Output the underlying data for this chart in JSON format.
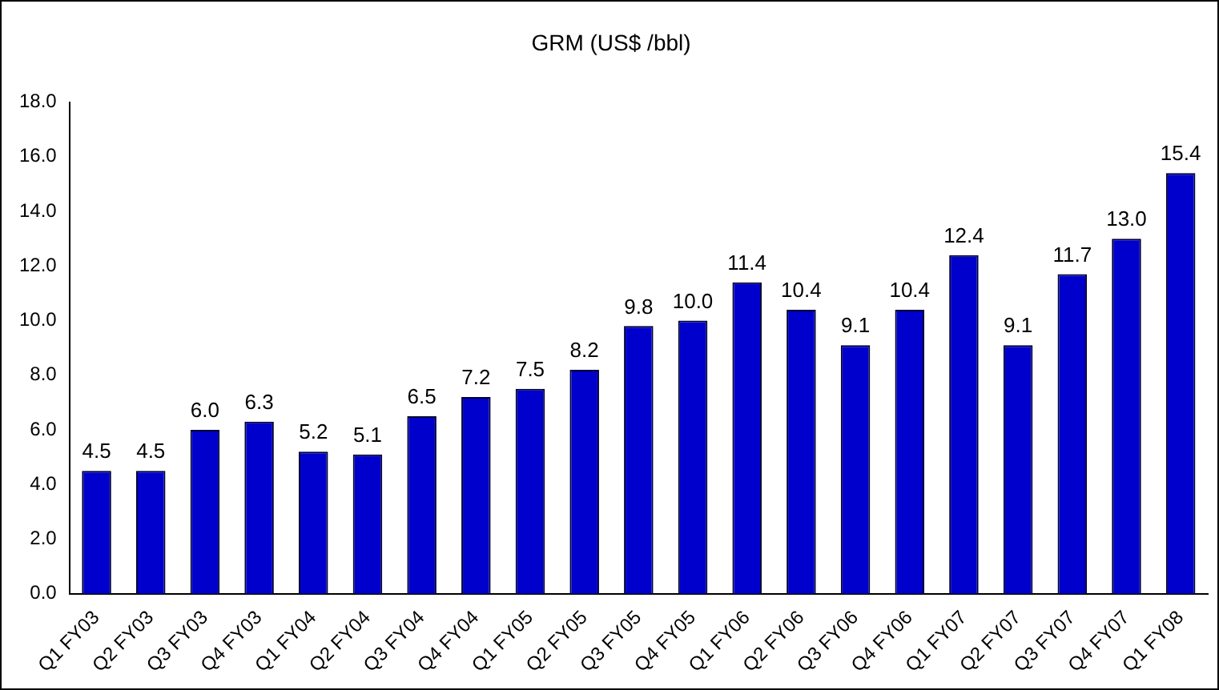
{
  "chart_data": {
    "type": "bar",
    "title": "GRM (US$ /bbl)",
    "categories": [
      "Q1 FY03",
      "Q2 FY03",
      "Q3 FY03",
      "Q4 FY03",
      "Q1 FY04",
      "Q2 FY04",
      "Q3 FY04",
      "Q4 FY04",
      "Q1 FY05",
      "Q2 FY05",
      "Q3 FY05",
      "Q4 FY05",
      "Q1 FY06",
      "Q2 FY06",
      "Q3 FY06",
      "Q4 FY06",
      "Q1 FY07",
      "Q2 FY07",
      "Q3 FY07",
      "Q4 FY07",
      "Q1 FY08"
    ],
    "values": [
      4.5,
      4.5,
      6.0,
      6.3,
      5.2,
      5.1,
      6.5,
      7.2,
      7.5,
      8.2,
      9.8,
      10.0,
      11.4,
      10.4,
      9.1,
      10.4,
      12.4,
      9.1,
      11.7,
      13.0,
      15.4
    ],
    "value_labels": [
      "4.5",
      "4.5",
      "6.0",
      "6.3",
      "5.2",
      "5.1",
      "6.5",
      "7.2",
      "7.5",
      "8.2",
      "9.8",
      "10.0",
      "11.4",
      "10.4",
      "9.1",
      "10.4",
      "12.4",
      "9.1",
      "11.7",
      "13.0",
      "15.4"
    ],
    "color": "#0000cc",
    "ylim": [
      0,
      18
    ],
    "yticks": [
      {
        "value": 0,
        "label": "0.0"
      },
      {
        "value": 2,
        "label": "2.0"
      },
      {
        "value": 4,
        "label": "4.0"
      },
      {
        "value": 6,
        "label": "6.0"
      },
      {
        "value": 8,
        "label": "8.0"
      },
      {
        "value": 10,
        "label": "10.0"
      },
      {
        "value": 12,
        "label": "12.0"
      },
      {
        "value": 14,
        "label": "14.0"
      },
      {
        "value": 16,
        "label": "16.0"
      },
      {
        "value": 18,
        "label": "18.0"
      }
    ],
    "grid": false,
    "legend": false
  }
}
